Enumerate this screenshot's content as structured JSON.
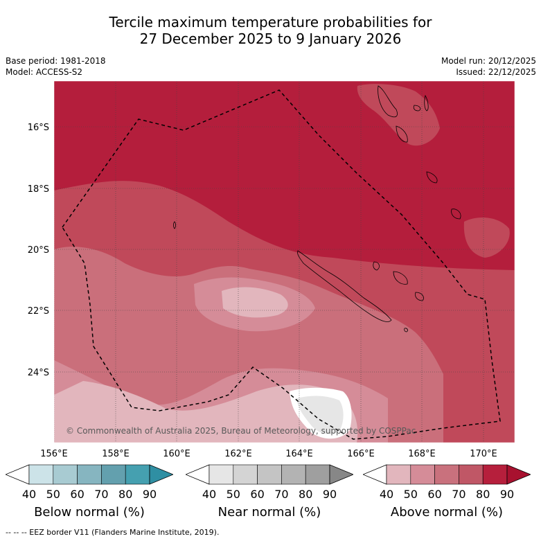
{
  "title_line1": "Tercile maximum temperature probabilities for",
  "title_line2": "27 December 2025 to 9 January 2026",
  "base_period": "Base period: 1981-2018",
  "model": "Model: ACCESS-S2",
  "model_run": "Model run: 20/12/2025",
  "issued": "Issued: 22/12/2025",
  "lat_labels": [
    "16°S",
    "18°S",
    "20°S",
    "22°S",
    "24°S"
  ],
  "lon_labels": [
    "156°E",
    "158°E",
    "160°E",
    "162°E",
    "164°E",
    "166°E",
    "168°E",
    "170°E"
  ],
  "copyright": "© Commonwealth of Australia 2025, Bureau of Meteorology, supported by COSPPac",
  "colorbars": [
    {
      "name": "below",
      "label": "Below normal (%)",
      "ticks": [
        "40",
        "50",
        "60",
        "70",
        "80",
        "90"
      ],
      "colors": [
        "#ffffff",
        "#cce3e8",
        "#a8cbd2",
        "#86b5c0",
        "#63a0ae",
        "#45a0b0",
        "#2f8fa3"
      ]
    },
    {
      "name": "near",
      "label": "Near normal (%)",
      "ticks": [
        "40",
        "50",
        "60",
        "70",
        "80",
        "90"
      ],
      "colors": [
        "#ffffff",
        "#e6e6e6",
        "#d4d4d4",
        "#c4c4c4",
        "#b3b3b3",
        "#9f9f9f",
        "#878787"
      ]
    },
    {
      "name": "above",
      "label": "Above normal (%)",
      "ticks": [
        "40",
        "50",
        "60",
        "70",
        "80",
        "90"
      ],
      "colors": [
        "#ffffff",
        "#e2b6bd",
        "#d58c98",
        "#c9717d",
        "#c05766",
        "#b61f3c",
        "#a8112f"
      ]
    }
  ],
  "footer": "-- -- -- EEZ border V11 (Flanders Marine Institute, 2019)."
}
